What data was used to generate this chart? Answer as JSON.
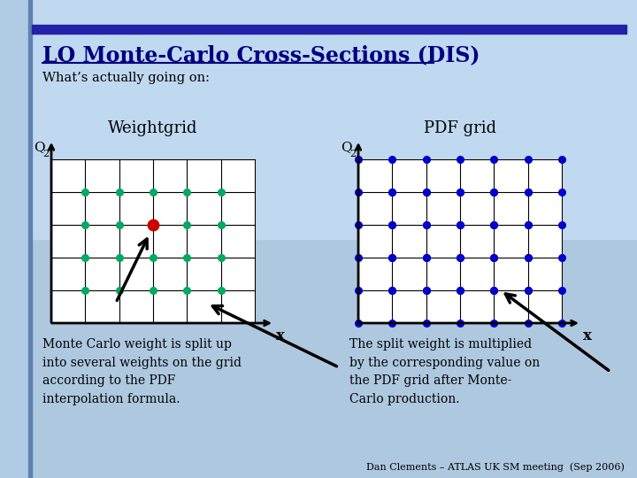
{
  "title": "LO Monte-Carlo Cross-Sections (DIS)",
  "subtitle": "What’s actually going on:",
  "bg_color_top": "#c8dcf0",
  "bg_color_bottom": "#a8c8e8",
  "title_color": "#000080",
  "title_bar_color": "#2222aa",
  "grid_color": "#000000",
  "dot_color_green": "#00aa60",
  "dot_color_red": "#cc0000",
  "dot_color_blue": "#0000cc",
  "grid_rows": 5,
  "grid_cols": 6,
  "weightgrid_title": "Weightgrid",
  "pdfgrid_title": "PDF grid",
  "left_text": "Monte Carlo weight is split up\ninto several weights on the grid\naccording to the PDF\ninterpolation formula.",
  "right_text": "The split weight is multiplied\nby the corresponding value on\nthe PDF grid after Monte-\nCarlo production.",
  "footer": "Dan Clements – ATLAS UK SM meeting  (Sep 2006)",
  "axis_label_q": "Q",
  "axis_label_x": "x"
}
